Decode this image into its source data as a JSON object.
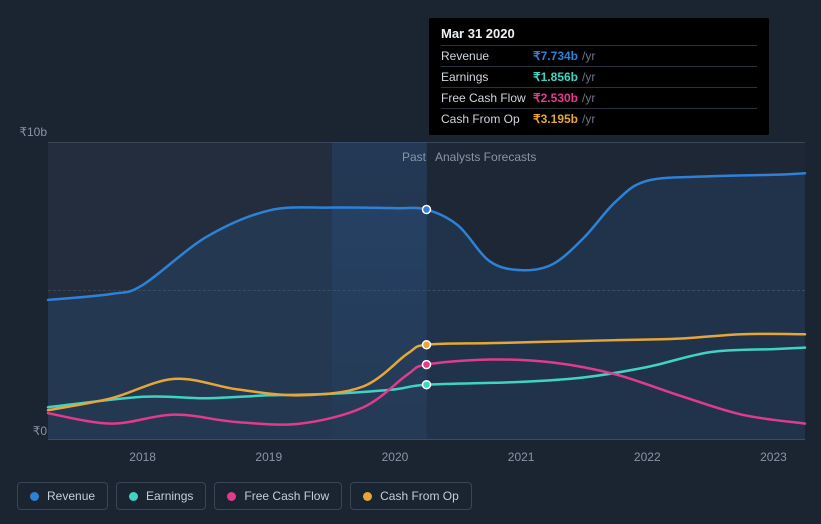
{
  "chart": {
    "background_color": "#1b2431",
    "plot_past_bg": "#232d3d",
    "plot_future_bg": "#1e2735",
    "gridline_color": "#3a4556",
    "label_color": "#8a94a6",
    "label_fontsize": 12,
    "currency_symbol": "₹",
    "xlim": [
      2017.25,
      2023.25
    ],
    "ylim": [
      0,
      10
    ],
    "y_ticks": [
      {
        "v": 10,
        "label": "₹10b"
      },
      {
        "v": 0,
        "label": "₹0"
      }
    ],
    "x_ticks": [
      {
        "v": 2018,
        "label": "2018"
      },
      {
        "v": 2019,
        "label": "2019"
      },
      {
        "v": 2020,
        "label": "2020"
      },
      {
        "v": 2021,
        "label": "2021"
      },
      {
        "v": 2022,
        "label": "2022"
      },
      {
        "v": 2023,
        "label": "2023"
      }
    ],
    "divider_x": 2020.25,
    "highlight": {
      "from": 2019.5,
      "to": 2020.25,
      "color": "#2371c7",
      "opacity": 0.18
    },
    "regions": {
      "past": "Past",
      "forecast": "Analysts Forecasts"
    },
    "series": [
      {
        "id": "revenue",
        "name": "Revenue",
        "color": "#2f81d6",
        "type": "line-area",
        "line_width": 2.5,
        "area_opacity": 0.14,
        "points": [
          {
            "x": 2017.25,
            "y": 4.7
          },
          {
            "x": 2017.75,
            "y": 4.9
          },
          {
            "x": 2018.0,
            "y": 5.2
          },
          {
            "x": 2018.5,
            "y": 6.8
          },
          {
            "x": 2019.0,
            "y": 7.7
          },
          {
            "x": 2019.5,
            "y": 7.8
          },
          {
            "x": 2020.0,
            "y": 7.78
          },
          {
            "x": 2020.25,
            "y": 7.734
          },
          {
            "x": 2020.5,
            "y": 7.2
          },
          {
            "x": 2020.75,
            "y": 6.0
          },
          {
            "x": 2021.0,
            "y": 5.7
          },
          {
            "x": 2021.25,
            "y": 5.9
          },
          {
            "x": 2021.5,
            "y": 6.8
          },
          {
            "x": 2021.75,
            "y": 8.0
          },
          {
            "x": 2022.0,
            "y": 8.7
          },
          {
            "x": 2022.5,
            "y": 8.85
          },
          {
            "x": 2023.0,
            "y": 8.9
          },
          {
            "x": 2023.25,
            "y": 8.95
          }
        ]
      },
      {
        "id": "earnings",
        "name": "Earnings",
        "color": "#3fd4c2",
        "type": "line",
        "line_width": 2.5,
        "points": [
          {
            "x": 2017.25,
            "y": 1.1
          },
          {
            "x": 2018.0,
            "y": 1.45
          },
          {
            "x": 2018.5,
            "y": 1.4
          },
          {
            "x": 2019.0,
            "y": 1.5
          },
          {
            "x": 2019.5,
            "y": 1.55
          },
          {
            "x": 2020.0,
            "y": 1.7
          },
          {
            "x": 2020.25,
            "y": 1.856
          },
          {
            "x": 2021.0,
            "y": 1.95
          },
          {
            "x": 2021.5,
            "y": 2.1
          },
          {
            "x": 2022.0,
            "y": 2.45
          },
          {
            "x": 2022.5,
            "y": 2.95
          },
          {
            "x": 2023.0,
            "y": 3.05
          },
          {
            "x": 2023.25,
            "y": 3.1
          }
        ]
      },
      {
        "id": "fcf",
        "name": "Free Cash Flow",
        "color": "#e23b8b",
        "type": "line",
        "line_width": 2.5,
        "points": [
          {
            "x": 2017.25,
            "y": 0.9
          },
          {
            "x": 2017.75,
            "y": 0.55
          },
          {
            "x": 2018.25,
            "y": 0.85
          },
          {
            "x": 2018.75,
            "y": 0.6
          },
          {
            "x": 2019.25,
            "y": 0.55
          },
          {
            "x": 2019.75,
            "y": 1.1
          },
          {
            "x": 2020.1,
            "y": 2.2
          },
          {
            "x": 2020.25,
            "y": 2.53
          },
          {
            "x": 2020.75,
            "y": 2.7
          },
          {
            "x": 2021.25,
            "y": 2.6
          },
          {
            "x": 2021.75,
            "y": 2.2
          },
          {
            "x": 2022.25,
            "y": 1.5
          },
          {
            "x": 2022.75,
            "y": 0.85
          },
          {
            "x": 2023.25,
            "y": 0.55
          }
        ]
      },
      {
        "id": "cfo",
        "name": "Cash From Op",
        "color": "#e5a63a",
        "type": "line",
        "line_width": 2.5,
        "points": [
          {
            "x": 2017.25,
            "y": 1.0
          },
          {
            "x": 2017.75,
            "y": 1.4
          },
          {
            "x": 2018.25,
            "y": 2.05
          },
          {
            "x": 2018.75,
            "y": 1.7
          },
          {
            "x": 2019.25,
            "y": 1.5
          },
          {
            "x": 2019.75,
            "y": 1.8
          },
          {
            "x": 2020.1,
            "y": 2.9
          },
          {
            "x": 2020.25,
            "y": 3.195
          },
          {
            "x": 2020.75,
            "y": 3.25
          },
          {
            "x": 2021.25,
            "y": 3.3
          },
          {
            "x": 2021.75,
            "y": 3.35
          },
          {
            "x": 2022.25,
            "y": 3.4
          },
          {
            "x": 2022.75,
            "y": 3.55
          },
          {
            "x": 2023.25,
            "y": 3.55
          }
        ]
      }
    ],
    "tooltip": {
      "date": "Mar 31 2020",
      "unit": "/yr",
      "rows": [
        {
          "label": "Revenue",
          "value": "₹7.734b",
          "color": "#2f81d6"
        },
        {
          "label": "Earnings",
          "value": "₹1.856b",
          "color": "#3fd4c2"
        },
        {
          "label": "Free Cash Flow",
          "value": "₹2.530b",
          "color": "#e23b8b"
        },
        {
          "label": "Cash From Op",
          "value": "₹3.195b",
          "color": "#e5a63a"
        }
      ]
    },
    "marker_x": 2020.25,
    "marker_radius": 4
  },
  "legend": {
    "items": [
      {
        "id": "revenue",
        "label": "Revenue",
        "color": "#2f81d6"
      },
      {
        "id": "earnings",
        "label": "Earnings",
        "color": "#3fd4c2"
      },
      {
        "id": "fcf",
        "label": "Free Cash Flow",
        "color": "#e23b8b"
      },
      {
        "id": "cfo",
        "label": "Cash From Op",
        "color": "#e5a63a"
      }
    ]
  }
}
